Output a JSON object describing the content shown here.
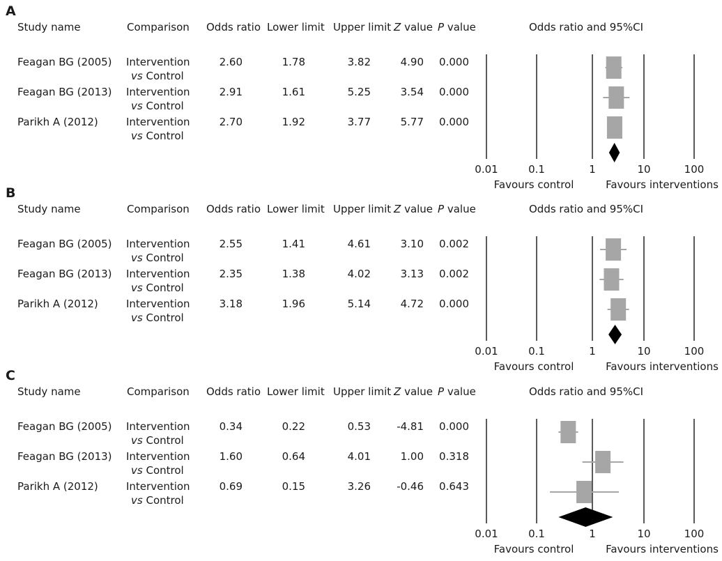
{
  "headers": {
    "study": "Study name",
    "comparison": "Comparison",
    "or": "Odds ratio",
    "lower": "Lower limit",
    "upper": "Upper limit",
    "z": "value",
    "z_prefix": "Z",
    "p": "value",
    "p_prefix": "P",
    "plot": "Odds ratio and 95%CI"
  },
  "comparison_line1": "Intervention",
  "comparison_vs": "vs",
  "comparison_line2": "Control",
  "favours_control": "Favours control",
  "favours_interventions": "Favours interventions",
  "colors": {
    "box": "#a6a6a6",
    "diamond": "#000000",
    "axis": "#000000",
    "ci": "#a6a6a6"
  },
  "chart_data": [
    {
      "label": "A",
      "type": "forest",
      "x_scale": "log",
      "x_ticks": [
        "0.01",
        "0.1",
        "1",
        "10",
        "100"
      ],
      "rows": [
        {
          "study": "Feagan BG (2005)",
          "or": "2.60",
          "lower": "1.78",
          "upper": "3.82",
          "z": "4.90",
          "p": "0.000"
        },
        {
          "study": "Feagan BG (2013)",
          "or": "2.91",
          "lower": "1.61",
          "upper": "5.25",
          "z": "3.54",
          "p": "0.000"
        },
        {
          "study": "Parikh A (2012)",
          "or": "2.70",
          "lower": "1.92",
          "upper": "3.77",
          "z": "5.77",
          "p": "0.000"
        }
      ],
      "pooled": {
        "or": 2.68,
        "lower": 2.1,
        "upper": 3.4
      }
    },
    {
      "label": "B",
      "type": "forest",
      "x_scale": "log",
      "x_ticks": [
        "0.01",
        "0.1",
        "1",
        "10",
        "100"
      ],
      "rows": [
        {
          "study": "Feagan BG (2005)",
          "or": "2.55",
          "lower": "1.41",
          "upper": "4.61",
          "z": "3.10",
          "p": "0.002"
        },
        {
          "study": "Feagan BG (2013)",
          "or": "2.35",
          "lower": "1.38",
          "upper": "4.02",
          "z": "3.13",
          "p": "0.002"
        },
        {
          "study": "Parikh A (2012)",
          "or": "3.18",
          "lower": "1.96",
          "upper": "5.14",
          "z": "4.72",
          "p": "0.000"
        }
      ],
      "pooled": {
        "or": 2.75,
        "lower": 2.05,
        "upper": 3.7
      }
    },
    {
      "label": "C",
      "type": "forest",
      "x_scale": "log",
      "x_ticks": [
        "0.01",
        "0.1",
        "1",
        "10",
        "100"
      ],
      "rows": [
        {
          "study": "Feagan BG (2005)",
          "or": "0.34",
          "lower": "0.22",
          "upper": "0.53",
          "z": "-4.81",
          "p": "0.000"
        },
        {
          "study": "Feagan BG (2013)",
          "or": "1.60",
          "lower": "0.64",
          "upper": "4.01",
          "z": "1.00",
          "p": "0.318"
        },
        {
          "study": "Parikh A (2012)",
          "or": "0.69",
          "lower": "0.15",
          "upper": "3.26",
          "z": "-0.46",
          "p": "0.643"
        }
      ],
      "pooled": {
        "or": 0.74,
        "lower": 0.22,
        "upper": 2.5
      }
    }
  ]
}
